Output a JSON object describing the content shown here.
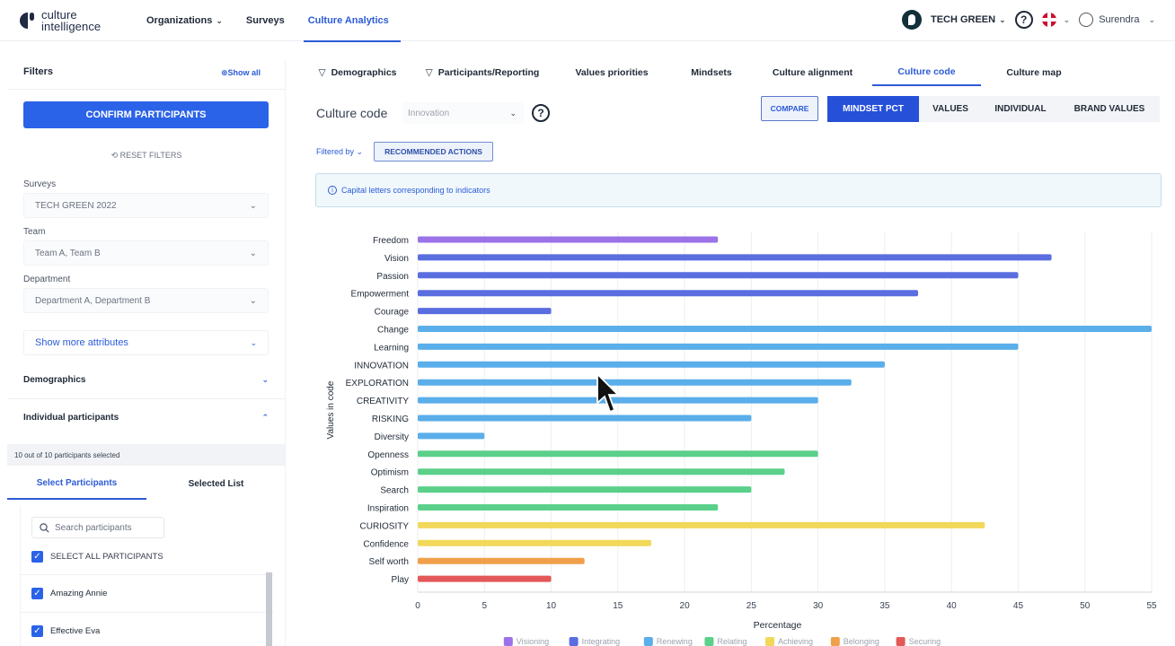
{
  "brand": {
    "line1": "culture",
    "line2": "intelligence"
  },
  "nav": {
    "items": [
      "Organizations",
      "Surveys",
      "Culture Analytics"
    ],
    "active": "Culture Analytics"
  },
  "topright": {
    "org": "TECH GREEN",
    "help": "?",
    "user": "Surendra"
  },
  "sidebar": {
    "title": "Filters",
    "show_all": "⊕Show all",
    "confirm": "CONFIRM PARTICIPANTS",
    "reset": "RESET FILTERS",
    "fields": [
      {
        "label": "Surveys",
        "value": "TECH GREEN 2022"
      },
      {
        "label": "Team",
        "value": "Team A, Team B"
      },
      {
        "label": "Department",
        "value": "Department A, Department B"
      }
    ],
    "show_more": "Show more attributes",
    "demographics": "Demographics",
    "individual": "Individual participants",
    "count_text": "10 out of 10 participants selected",
    "tabs": [
      "Select Participants",
      "Selected List"
    ],
    "search_placeholder": "Search participants",
    "select_all": "SELECT ALL PARTICIPANTS",
    "participants": [
      "Amazing Annie",
      "Effective Eva"
    ]
  },
  "main": {
    "tabs": [
      "Demographics",
      "Participants/Reporting",
      "Values priorities",
      "Mindsets",
      "Culture alignment",
      "Culture code",
      "Culture map"
    ],
    "active_tab": "Culture code",
    "cc_label": "Culture code",
    "cc_select": "Innovation",
    "compare": "COMPARE",
    "segments": [
      "MINDSET PCT",
      "VALUES",
      "INDIVIDUAL",
      "BRAND VALUES"
    ],
    "active_segment": "MINDSET PCT",
    "filtered_by": "Filtered by ⌄",
    "recommended": "RECOMMENDED ACTIONS",
    "info": "Capital letters corresponding to indicators"
  },
  "chart_data": {
    "type": "bar",
    "orientation": "horizontal",
    "title": "",
    "xlabel": "Percentage",
    "ylabel": "Values in code",
    "xlim": [
      0,
      55
    ],
    "xticks": [
      0,
      5,
      10,
      15,
      20,
      25,
      30,
      35,
      40,
      45,
      50,
      55
    ],
    "grid": true,
    "legend": "bottom",
    "legend_items": [
      {
        "name": "Visioning",
        "color": "#9b72e8"
      },
      {
        "name": "Integrating",
        "color": "#5b6ee0"
      },
      {
        "name": "Renewing",
        "color": "#5aaee9"
      },
      {
        "name": "Relating",
        "color": "#5bd08a"
      },
      {
        "name": "Achieving",
        "color": "#f2d85a"
      },
      {
        "name": "Belonging",
        "color": "#f0a04b"
      },
      {
        "name": "Securing",
        "color": "#e35858"
      }
    ],
    "categories": [
      "Freedom",
      "Vision",
      "Passion",
      "Empowerment",
      "Courage",
      "Change",
      "Learning",
      "INNOVATION",
      "EXPLORATION",
      "CREATIVITY",
      "RISKING",
      "Diversity",
      "Openness",
      "Optimism",
      "Search",
      "Inspiration",
      "CURIOSITY",
      "Confidence",
      "Self worth",
      "Play"
    ],
    "values": [
      22.5,
      47.5,
      45,
      37.5,
      10,
      55,
      45,
      35,
      32.5,
      30,
      25,
      5,
      30,
      27.5,
      25,
      22.5,
      42.5,
      17.5,
      12.5,
      10
    ],
    "groups": [
      "Visioning",
      "Integrating",
      "Integrating",
      "Integrating",
      "Integrating",
      "Renewing",
      "Renewing",
      "Renewing",
      "Renewing",
      "Renewing",
      "Renewing",
      "Renewing",
      "Relating",
      "Relating",
      "Relating",
      "Relating",
      "Achieving",
      "Achieving",
      "Belonging",
      "Securing"
    ]
  }
}
